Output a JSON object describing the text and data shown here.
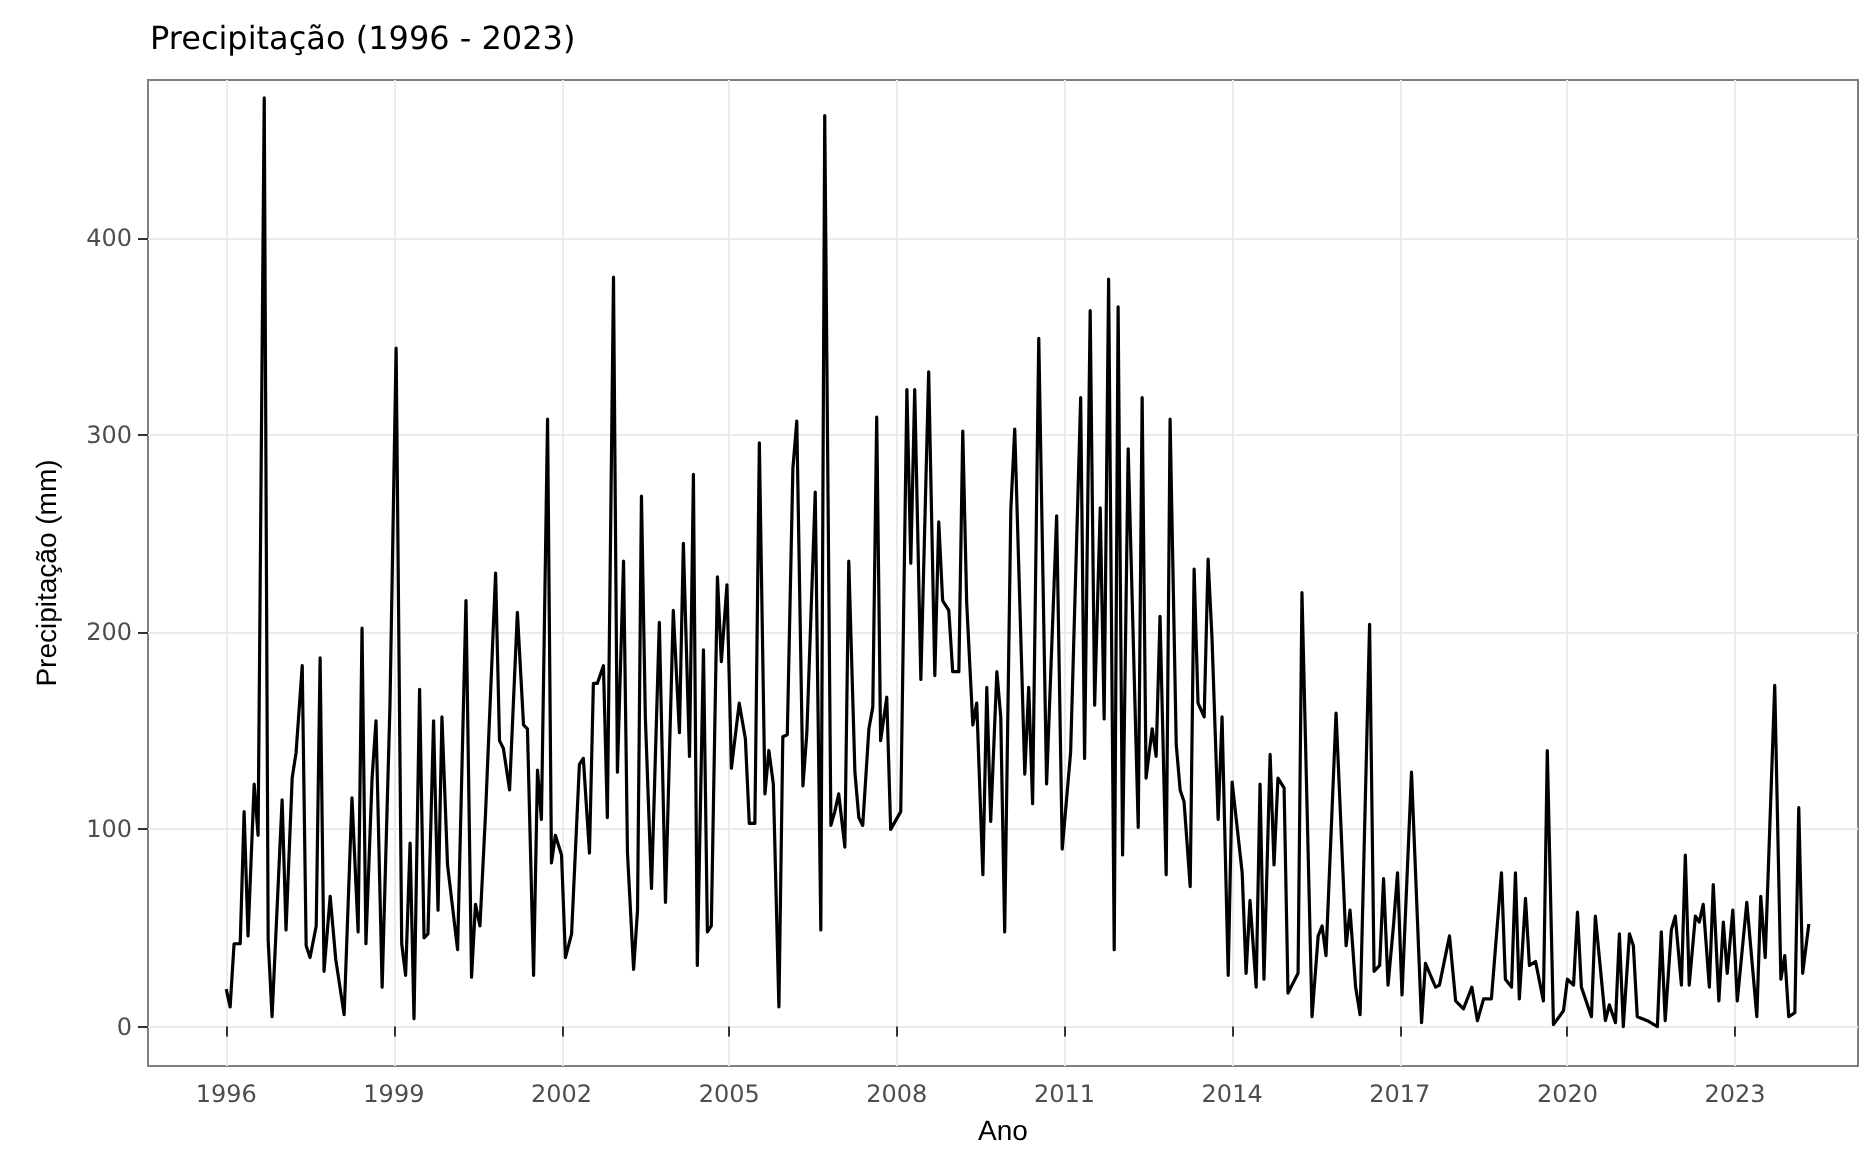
{
  "chart_data": {
    "type": "line",
    "title": "Precipitação (1996 - 2023)",
    "xlabel": "Ano",
    "ylabel": "Precipitação (mm)",
    "xlim": [
      1994.6,
      2025.2
    ],
    "ylim": [
      -20,
      480
    ],
    "xticks": [
      1996,
      1999,
      2002,
      2005,
      2008,
      2011,
      2014,
      2017,
      2020,
      2023
    ],
    "yticks": [
      0,
      100,
      200,
      300,
      400
    ],
    "grid": true,
    "x": [
      1996.0,
      1996.07,
      1996.14,
      1996.25,
      1996.32,
      1996.39,
      1996.5,
      1996.57,
      1996.68,
      1996.75,
      1996.82,
      1997.0,
      1997.07,
      1997.18,
      1997.25,
      1997.36,
      1997.43,
      1997.5,
      1997.61,
      1997.68,
      1997.75,
      1997.86,
      1997.96,
      1998.11,
      1998.25,
      1998.36,
      1998.43,
      1998.5,
      1998.61,
      1998.68,
      1998.79,
      1998.93,
      1999.04,
      1999.14,
      1999.21,
      1999.29,
      1999.36,
      1999.46,
      1999.54,
      1999.61,
      1999.71,
      1999.79,
      1999.86,
      1999.96,
      2000.14,
      2000.29,
      2000.39,
      2000.46,
      2000.54,
      2000.64,
      2000.82,
      2000.89,
      2000.96,
      2001.07,
      2001.21,
      2001.32,
      2001.39,
      2001.5,
      2001.57,
      2001.64,
      2001.75,
      2001.82,
      2001.89,
      2002.0,
      2002.07,
      2002.18,
      2002.32,
      2002.39,
      2002.5,
      2002.57,
      2002.64,
      2002.75,
      2002.82,
      2002.93,
      2003.0,
      2003.11,
      2003.18,
      2003.29,
      2003.36,
      2003.43,
      2003.5,
      2003.61,
      2003.75,
      2003.86,
      2004.0,
      2004.11,
      2004.18,
      2004.29,
      2004.36,
      2004.43,
      2004.54,
      2004.61,
      2004.68,
      2004.79,
      2004.86,
      2004.96,
      2005.04,
      2005.18,
      2005.29,
      2005.36,
      2005.46,
      2005.54,
      2005.64,
      2005.71,
      2005.79,
      2005.89,
      2005.96,
      2006.04,
      2006.14,
      2006.21,
      2006.32,
      2006.39,
      2006.54,
      2006.64,
      2006.71,
      2006.82,
      2006.89,
      2006.96,
      2007.07,
      2007.14,
      2007.25,
      2007.32,
      2007.39,
      2007.5,
      2007.57,
      2007.64,
      2007.71,
      2007.82,
      2007.89,
      2008.07,
      2008.18,
      2008.25,
      2008.32,
      2008.43,
      2008.57,
      2008.68,
      2008.75,
      2008.82,
      2008.93,
      2009.0,
      2009.11,
      2009.18,
      2009.25,
      2009.36,
      2009.43,
      2009.54,
      2009.61,
      2009.68,
      2009.79,
      2009.86,
      2009.93,
      2010.04,
      2010.11,
      2010.29,
      2010.36,
      2010.43,
      2010.54,
      2010.68,
      2010.86,
      2010.96,
      2011.11,
      2011.29,
      2011.36,
      2011.46,
      2011.54,
      2011.64,
      2011.71,
      2011.79,
      2011.89,
      2011.96,
      2012.04,
      2012.14,
      2012.32,
      2012.39,
      2012.46,
      2012.57,
      2012.64,
      2012.71,
      2012.82,
      2012.89,
      2013.0,
      2013.07,
      2013.14,
      2013.25,
      2013.32,
      2013.39,
      2013.5,
      2013.57,
      2013.64,
      2013.75,
      2013.82,
      2013.93,
      2014.0,
      2014.18,
      2014.25,
      2014.32,
      2014.43,
      2014.5,
      2014.57,
      2014.68,
      2014.75,
      2014.82,
      2014.93,
      2015.0,
      2015.18,
      2015.25,
      2015.43,
      2015.54,
      2015.61,
      2015.68,
      2015.86,
      2016.04,
      2016.11,
      2016.21,
      2016.29,
      2016.46,
      2016.54,
      2016.64,
      2016.71,
      2016.79,
      2016.89,
      2016.96,
      2017.04,
      2017.21,
      2017.39,
      2017.46,
      2017.64,
      2017.71,
      2017.89,
      2018.0,
      2018.14,
      2018.29,
      2018.39,
      2018.5,
      2018.64,
      2018.82,
      2018.89,
      2019.0,
      2019.07,
      2019.14,
      2019.25,
      2019.32,
      2019.43,
      2019.57,
      2019.64,
      2019.75,
      2019.93,
      2020.0,
      2020.11,
      2020.18,
      2020.25,
      2020.43,
      2020.5,
      2020.68,
      2020.75,
      2020.86,
      2020.93,
      2021.0,
      2021.11,
      2021.18,
      2021.25,
      2021.43,
      2021.61,
      2021.68,
      2021.75,
      2021.86,
      2021.93,
      2022.04,
      2022.11,
      2022.18,
      2022.29,
      2022.36,
      2022.43,
      2022.54,
      2022.61,
      2022.71,
      2022.79,
      2022.86,
      2022.96,
      2023.04,
      2023.21,
      2023.39,
      2023.46,
      2023.54,
      2023.71,
      2023.82,
      2023.89,
      2023.96,
      2024.07,
      2024.14,
      2024.21,
      2024.32
    ],
    "series": [
      {
        "color": "#000000",
        "values": [
          19,
          10,
          42,
          42,
          109,
          46,
          123,
          97,
          471,
          44,
          5,
          115,
          49,
          126,
          139,
          183,
          41,
          35,
          51,
          187,
          28,
          66,
          34,
          6,
          116,
          48,
          202,
          42,
          126,
          155,
          20,
          163,
          344,
          42,
          26,
          93,
          4,
          171,
          45,
          47,
          155,
          59,
          157,
          82,
          39,
          216,
          25,
          62,
          51,
          108,
          230,
          145,
          141,
          120,
          210,
          153,
          151,
          26,
          130,
          105,
          308,
          83,
          97,
          87,
          35,
          47,
          133,
          136,
          88,
          174,
          174,
          183,
          106,
          380,
          129,
          236,
          88,
          29,
          59,
          269,
          157,
          70,
          205,
          63,
          211,
          149,
          245,
          137,
          280,
          31,
          191,
          48,
          51,
          228,
          185,
          224,
          131,
          164,
          146,
          103,
          103,
          296,
          118,
          140,
          123,
          10,
          147,
          148,
          283,
          307,
          122,
          149,
          271,
          49,
          462,
          102,
          109,
          118,
          91,
          236,
          129,
          106,
          102,
          151,
          162,
          309,
          145,
          167,
          100,
          109,
          323,
          235,
          323,
          176,
          332,
          178,
          256,
          216,
          211,
          180,
          180,
          302,
          215,
          153,
          164,
          77,
          172,
          104,
          180,
          157,
          48,
          262,
          303,
          128,
          172,
          113,
          349,
          123,
          259,
          90,
          139,
          319,
          136,
          363,
          163,
          263,
          156,
          379,
          39,
          365,
          87,
          293,
          101,
          319,
          126,
          151,
          137,
          208,
          77,
          308,
          143,
          120,
          114,
          71,
          232,
          164,
          157,
          237,
          197,
          105,
          157,
          26,
          124,
          78,
          27,
          64,
          20,
          123,
          24,
          138,
          82,
          126,
          121,
          17,
          27,
          220,
          5,
          46,
          51,
          36,
          159,
          41,
          59,
          20,
          6,
          204,
          28,
          31,
          75,
          21,
          52,
          78,
          16,
          129,
          2,
          32,
          20,
          21,
          46,
          13,
          9,
          20,
          3,
          14,
          14,
          78,
          24,
          20,
          78,
          14,
          65,
          31,
          33,
          13,
          140,
          1,
          8,
          24,
          21,
          58,
          20,
          5,
          56,
          3,
          11,
          2,
          47,
          0,
          47,
          41,
          5,
          3,
          0,
          48,
          3,
          49,
          56,
          21,
          87,
          21,
          56,
          53,
          62,
          20,
          72,
          13,
          53,
          27,
          59,
          13,
          63,
          5,
          66,
          35,
          173,
          24,
          36,
          5,
          7,
          111,
          27,
          52
        ]
      }
    ]
  }
}
